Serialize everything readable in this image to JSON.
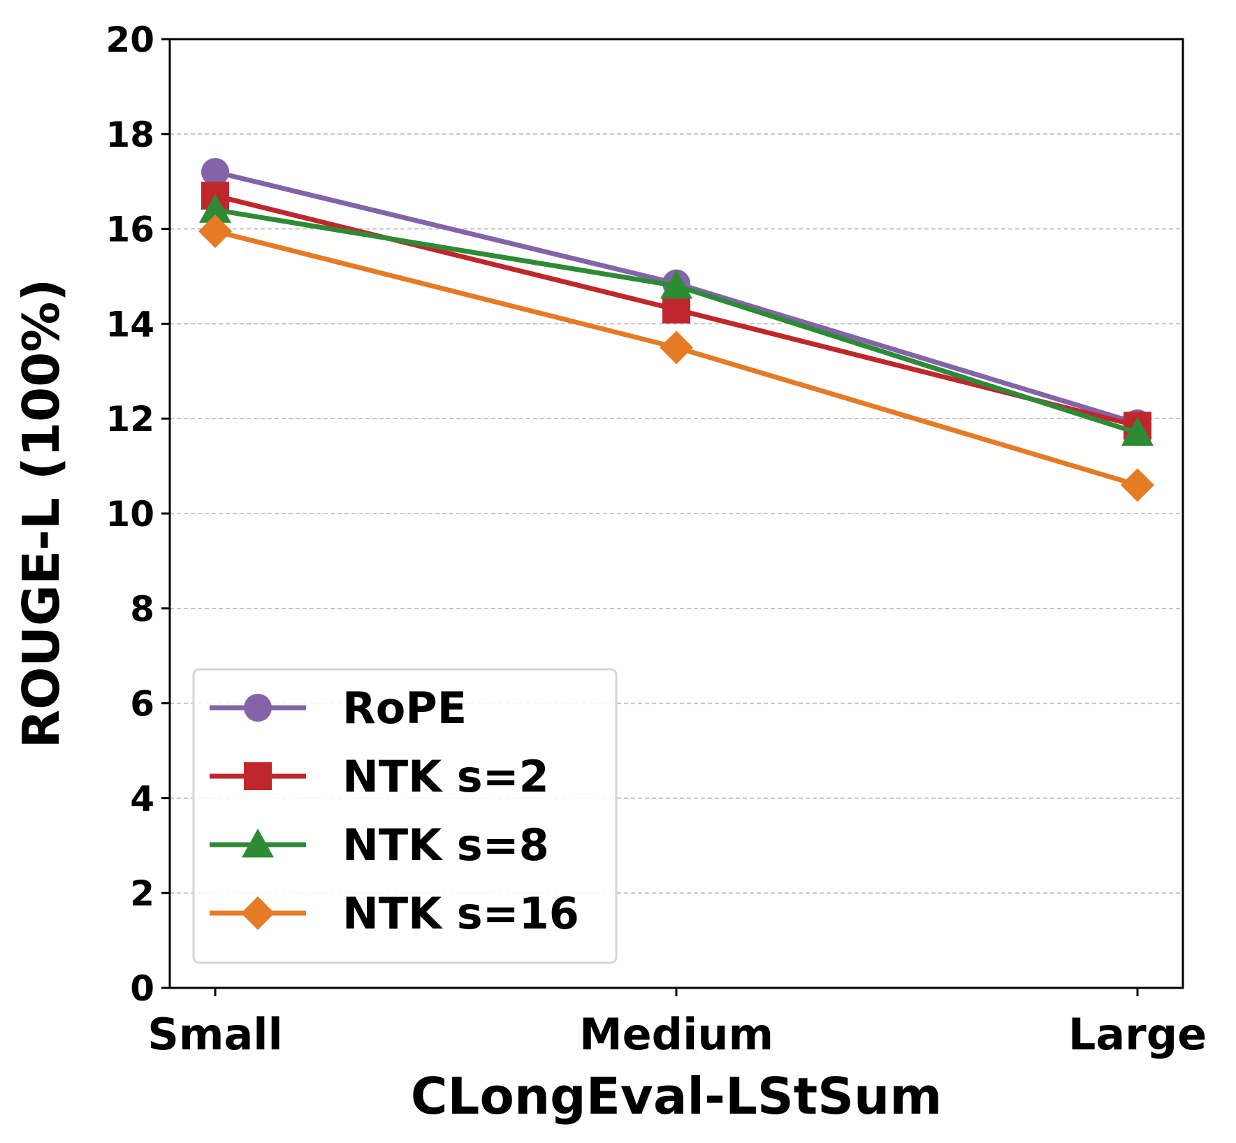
{
  "chart_data": {
    "type": "line",
    "categories": [
      "Small",
      "Medium",
      "Large"
    ],
    "series": [
      {
        "name": "RoPE",
        "values": [
          17.2,
          14.85,
          11.9
        ],
        "color": "#8463A8",
        "marker": "circle"
      },
      {
        "name": "NTK s=2",
        "values": [
          16.7,
          14.3,
          11.85
        ],
        "color": "#C0272D",
        "marker": "square"
      },
      {
        "name": "NTK s=8",
        "values": [
          16.4,
          14.8,
          11.7
        ],
        "color": "#2E8B35",
        "marker": "triangle"
      },
      {
        "name": "NTK s=16",
        "values": [
          15.95,
          13.5,
          10.6
        ],
        "color": "#E57B25",
        "marker": "diamond"
      }
    ],
    "xlabel": "CLongEval-LStSum",
    "ylabel": "ROUGE-L (100%)",
    "ylim": [
      0,
      20
    ],
    "yticks": [
      0,
      2,
      4,
      6,
      8,
      10,
      12,
      14,
      16,
      18,
      20
    ],
    "grid": "horizontal-dashed",
    "legend_position": "lower-left"
  }
}
